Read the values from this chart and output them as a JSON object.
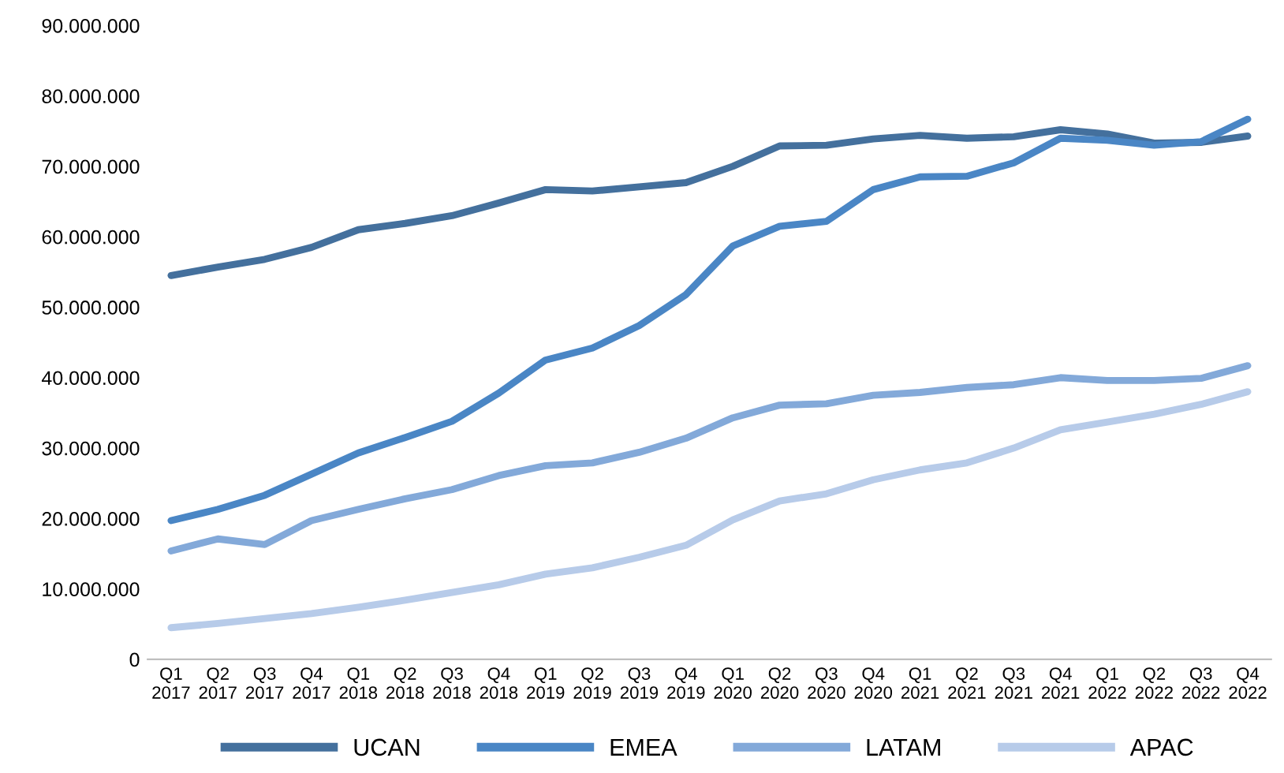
{
  "chart_data": {
    "type": "line",
    "categories": [
      "Q1\n2017",
      "Q2\n2017",
      "Q3\n2017",
      "Q4\n2017",
      "Q1\n2018",
      "Q2\n2018",
      "Q3\n2018",
      "Q4\n2018",
      "Q1\n2019",
      "Q2\n2019",
      "Q3\n2019",
      "Q4\n2019",
      "Q1\n2020",
      "Q2\n2020",
      "Q3\n2020",
      "Q4\n2020",
      "Q1\n2021",
      "Q2\n2021",
      "Q3\n2021",
      "Q4\n2021",
      "Q1\n2022",
      "Q2\n2022",
      "Q3\n2022",
      "Q4\n2022"
    ],
    "series": [
      {
        "name": "UCAN",
        "color": "#44709d",
        "values": [
          54500000,
          55700000,
          56800000,
          58500000,
          61000000,
          61900000,
          63000000,
          64800000,
          66700000,
          66500000,
          67100000,
          67700000,
          70000000,
          72900000,
          73000000,
          73900000,
          74400000,
          74000000,
          74200000,
          75200000,
          74600000,
          73300000,
          73400000,
          74300000
        ]
      },
      {
        "name": "EMEA",
        "color": "#4a86c5",
        "values": [
          19700000,
          21300000,
          23300000,
          26300000,
          29300000,
          31500000,
          33800000,
          37800000,
          42500000,
          44200000,
          47400000,
          51800000,
          58700000,
          61500000,
          62200000,
          66700000,
          68500000,
          68600000,
          70500000,
          74000000,
          73700000,
          73000000,
          73500000,
          76700000
        ]
      },
      {
        "name": "LATAM",
        "color": "#83a9d9",
        "values": [
          15400000,
          17100000,
          16300000,
          19700000,
          21300000,
          22800000,
          24100000,
          26100000,
          27500000,
          27900000,
          29400000,
          31400000,
          34300000,
          36100000,
          36300000,
          37500000,
          37900000,
          38600000,
          39000000,
          40000000,
          39600000,
          39600000,
          39900000,
          41700000
        ]
      },
      {
        "name": "APAC",
        "color": "#b7cbe9",
        "values": [
          4500000,
          5100000,
          5800000,
          6500000,
          7400000,
          8400000,
          9500000,
          10600000,
          12100000,
          13000000,
          14500000,
          16200000,
          19800000,
          22500000,
          23500000,
          25500000,
          26900000,
          27900000,
          30000000,
          32600000,
          33700000,
          34800000,
          36200000,
          38000000
        ]
      }
    ],
    "ylim": [
      0,
      90000000
    ],
    "yticks": [
      0,
      {
        "value": 10000000,
        "label": "10.000.000"
      },
      {
        "value": 20000000,
        "label": "20.000.000"
      },
      {
        "value": 30000000,
        "label": "30.000.000"
      },
      {
        "value": 40000000,
        "label": "40.000.000"
      },
      {
        "value": 50000000,
        "label": "50.000.000"
      },
      {
        "value": 60000000,
        "label": "60.000.000"
      },
      {
        "value": 70000000,
        "label": "70.000.000"
      },
      {
        "value": 80000000,
        "label": "80.000.000"
      },
      {
        "value": 90000000,
        "label": "90.000.000"
      }
    ],
    "grid": false,
    "legend": "bottom",
    "marker": "none",
    "line_style": "solid"
  }
}
